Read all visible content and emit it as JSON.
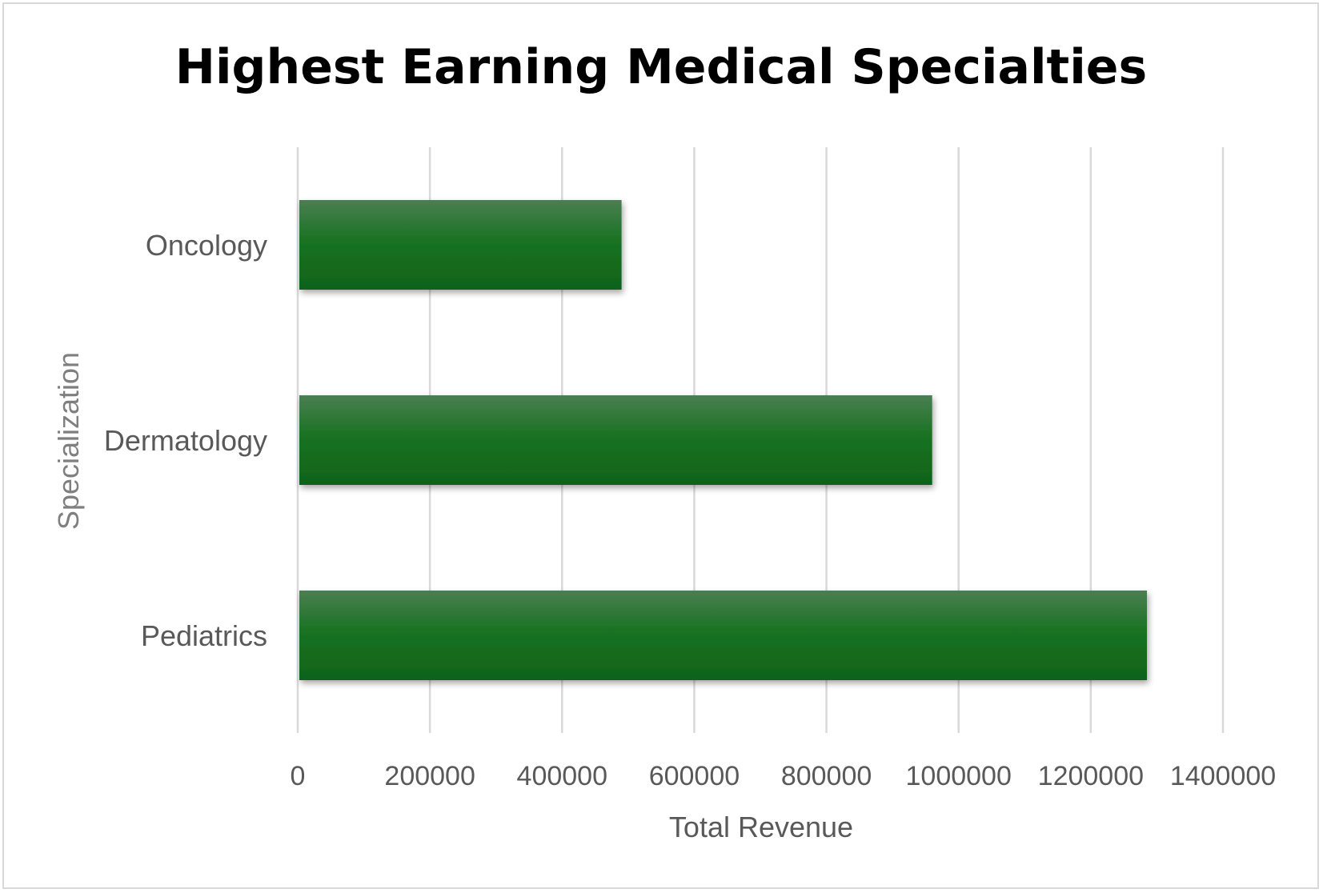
{
  "chart_data": {
    "type": "bar",
    "orientation": "horizontal",
    "title": "Highest Earning Medical Specialties",
    "xlabel": "Total Revenue",
    "ylabel": "Specialization",
    "categories": [
      "Oncology",
      "Dermatology",
      "Pediatrics"
    ],
    "values": [
      490000,
      960000,
      1285000
    ],
    "xlim": [
      0,
      1400000
    ],
    "xticks": [
      "0",
      "200000",
      "400000",
      "600000",
      "800000",
      "1000000",
      "1200000",
      "1400000"
    ],
    "grid": true,
    "legend": "none",
    "colors": {
      "bar_top": "#4a7f52",
      "bar_mid": "#1a7222",
      "bar_bottom": "#0f631a",
      "grid": "#d9d9d9"
    }
  }
}
